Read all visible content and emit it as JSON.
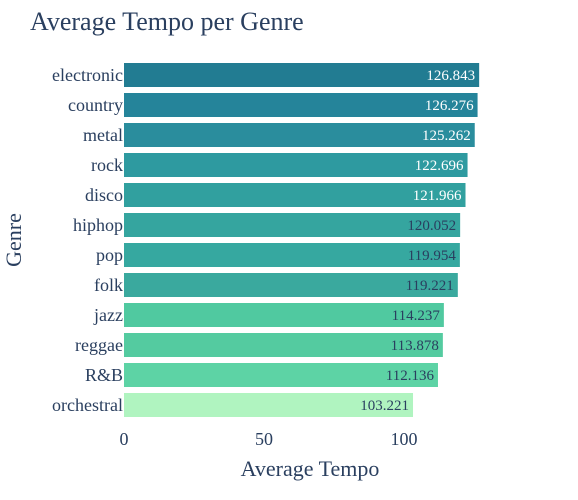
{
  "chart_data": {
    "type": "bar",
    "orientation": "horizontal",
    "title": "Average Tempo per Genre",
    "xlabel": "Average Tempo",
    "ylabel": "Genre",
    "xlim": [
      0,
      130
    ],
    "xticks": [
      0,
      50,
      100
    ],
    "grid": false,
    "legend": "none",
    "categories": [
      "electronic",
      "country",
      "metal",
      "rock",
      "disco",
      "hiphop",
      "pop",
      "folk",
      "jazz",
      "reggae",
      "R&B",
      "orchestral"
    ],
    "values": [
      126.843,
      126.276,
      125.262,
      122.696,
      121.966,
      120.052,
      119.954,
      119.221,
      114.237,
      113.878,
      112.136,
      103.221
    ],
    "labels": [
      "126.843",
      "126.276",
      "125.262",
      "122.696",
      "121.966",
      "120.052",
      "119.954",
      "119.221",
      "114.237",
      "113.878",
      "112.136",
      "103.221"
    ],
    "colors": [
      "#227c92",
      "#25849a",
      "#2a8d9d",
      "#2e9aa0",
      "#31a09f",
      "#35a59f",
      "#36a8a0",
      "#3aa99e",
      "#50c9a0",
      "#54cba0",
      "#5dd3a5",
      "#b0f4c0"
    ],
    "label_colors": [
      "#ffffff",
      "#ffffff",
      "#ffffff",
      "#ffffff",
      "#ffffff",
      "#2a3f5f",
      "#2a3f5f",
      "#2a3f5f",
      "#2a3f5f",
      "#2a3f5f",
      "#2a3f5f",
      "#2a3f5f"
    ]
  }
}
